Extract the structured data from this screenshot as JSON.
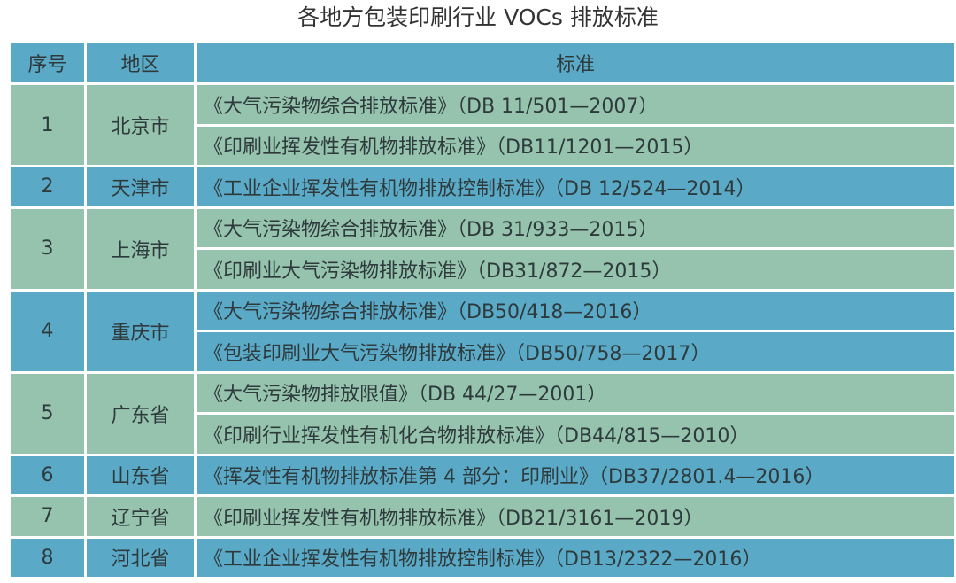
{
  "title": "各地方包装印刷行业 VOCs 排放标准",
  "colors": {
    "blue": "#5aa9c7",
    "green": "#95c3ad"
  },
  "headers": [
    "序号",
    "地区",
    "标准"
  ],
  "rows": [
    {
      "no": "1",
      "region": "北京市",
      "standards": [
        "《大气污染物综合排放标准》（DB 11/501—2007）",
        "《印刷业挥发性有机物排放标准》（DB11/1201—2015）"
      ]
    },
    {
      "no": "2",
      "region": "天津市",
      "standards": [
        "《工业企业挥发性有机物排放控制标准》（DB 12/524—2014）"
      ]
    },
    {
      "no": "3",
      "region": "上海市",
      "standards": [
        "《大气污染物综合排放标准》（DB 31/933—2015）",
        "《印刷业大气污染物排放标准》（DB31/872—2015）"
      ]
    },
    {
      "no": "4",
      "region": "重庆市",
      "standards": [
        "《大气污染物综合排放标准》（DB50/418—2016）",
        "《包装印刷业大气污染物排放标准》（DB50/758—2017）"
      ]
    },
    {
      "no": "5",
      "region": "广东省",
      "standards": [
        "《大气污染物排放限值》（DB 44/27—2001）",
        "《印刷行业挥发性有机化合物排放标准》（DB44/815—2010）"
      ]
    },
    {
      "no": "6",
      "region": "山东省",
      "standards": [
        "《挥发性有机物排放标准第 4 部分：印刷业》（DB37/2801.4—2016）"
      ]
    },
    {
      "no": "7",
      "region": "辽宁省",
      "standards": [
        "《印刷业挥发性有机物排放标准》（DB21/3161—2019）"
      ]
    },
    {
      "no": "8",
      "region": "河北省",
      "standards": [
        "《工业企业挥发性有机物排放控制标准》（DB13/2322—2016）"
      ]
    }
  ]
}
